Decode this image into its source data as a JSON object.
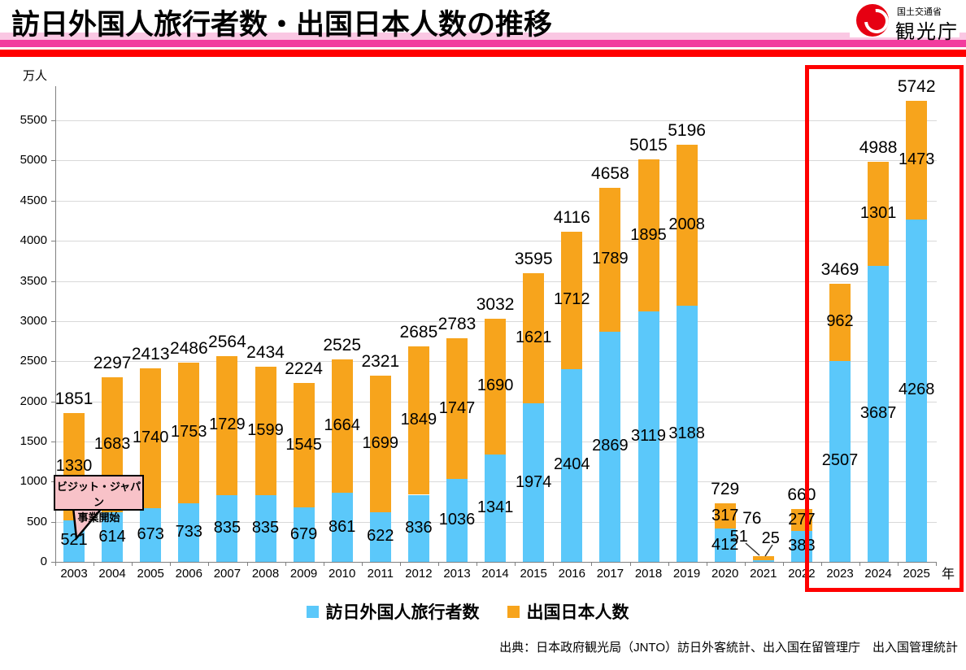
{
  "header": {
    "title": "訪日外国人旅行者数・出国日本人数の推移",
    "logo": {
      "ministry": "国土交通省",
      "agency": "観光庁"
    }
  },
  "chart_data": {
    "type": "bar",
    "stacked": true,
    "title": "訪日外国人旅行者数・出国日本人数の推移",
    "unit_label": "万人",
    "x_axis_label": "年",
    "categories": [
      2003,
      2004,
      2005,
      2006,
      2007,
      2008,
      2009,
      2010,
      2011,
      2012,
      2013,
      2014,
      2015,
      2016,
      2017,
      2018,
      2019,
      2020,
      2021,
      2022,
      2023,
      2024,
      2025
    ],
    "series": [
      {
        "name": "訪日外国人旅行者数",
        "color": "#5BC8FA",
        "values": [
          521,
          614,
          673,
          733,
          835,
          835,
          679,
          861,
          622,
          836,
          1036,
          1341,
          1974,
          2404,
          2869,
          3119,
          3188,
          412,
          25,
          383,
          2507,
          3687,
          4268
        ]
      },
      {
        "name": "出国日本人数",
        "color": "#F7A41C",
        "values": [
          1330,
          1683,
          1740,
          1753,
          1729,
          1599,
          1545,
          1664,
          1699,
          1849,
          1747,
          1690,
          1621,
          1712,
          1789,
          1895,
          2008,
          317,
          51,
          277,
          962,
          1301,
          1473
        ]
      }
    ],
    "totals": [
      1851,
      2297,
      2413,
      2486,
      2564,
      2434,
      2224,
      2525,
      2321,
      2685,
      2783,
      3032,
      3595,
      4116,
      4658,
      5015,
      5196,
      729,
      76,
      660,
      3469,
      4988,
      5742
    ],
    "ylim": [
      0,
      5800
    ],
    "y_ticks": [
      0,
      500,
      1000,
      1500,
      2000,
      2500,
      3000,
      3500,
      4000,
      4500,
      5000,
      5500
    ],
    "grid": true,
    "legend_position": "bottom",
    "annotation": {
      "line1": "ビジット・ジャパン",
      "line2": "事業開始",
      "target_year": 2003
    },
    "highlight": {
      "years": [
        2023,
        2024,
        2025
      ],
      "color": "#FF0000"
    }
  },
  "legend": {
    "items": [
      {
        "label": "訪日外国人旅行者数",
        "color": "#5BC8FA"
      },
      {
        "label": "出国日本人数",
        "color": "#F7A41C"
      }
    ]
  },
  "source": "出典：日本政府観光局（JNTO）訪日外客統計、出入国在留管理庁　出入国管理統計"
}
